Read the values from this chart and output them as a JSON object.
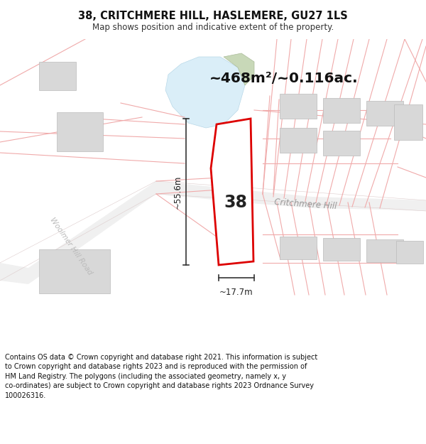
{
  "title_line1": "38, CRITCHMERE HILL, HASLEMERE, GU27 1LS",
  "title_line2": "Map shows position and indicative extent of the property.",
  "area_text": "~468m²/~0.116ac.",
  "dim_height": "~55.6m",
  "dim_width": "~17.7m",
  "property_number": "38",
  "road_label": "Critchmere Hill",
  "road_label2": "Woolmer Hill Road",
  "footer_text": "Contains OS data © Crown copyright and database right 2021. This information is subject to Crown copyright and database rights 2023 and is reproduced with the permission of HM Land Registry. The polygons (including the associated geometry, namely x, y co-ordinates) are subject to Crown copyright and database rights 2023 Ordnance Survey 100026316.",
  "bg_color": "#ffffff",
  "map_bg": "#ffffff",
  "property_fill": "#ffffff",
  "property_edge": "#dd0000",
  "plot_line_color": "#f0aaaa",
  "water_fill": "#daeef8",
  "green_fill": "#c8d8b8",
  "building_fill": "#d8d8d8",
  "road_fill": "#f0f0f0",
  "footer_bg": "#ffffff"
}
